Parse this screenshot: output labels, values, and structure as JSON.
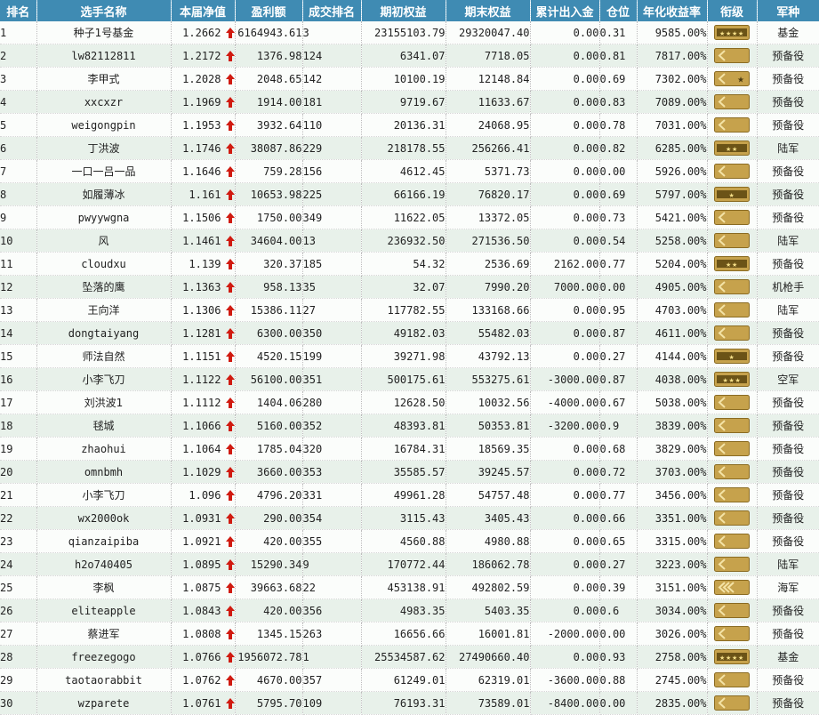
{
  "headers": [
    "排名",
    "选手名称",
    "本届净值",
    "盈利额",
    "成交排名",
    "期初权益",
    "期末权益",
    "累计出入金",
    "仓位",
    "年化收益率",
    "衔级",
    "军种"
  ],
  "colors": {
    "header_bg": "#3f8bb3",
    "row_alt": "#e8f1ea",
    "arrow": "#d01a10",
    "badge_gold": "#c6a24c",
    "badge_dark": "#4a3a12"
  },
  "rows": [
    {
      "rank": "1",
      "name": "种子1号基金",
      "nav": "1.2662",
      "profit": "6164943.61",
      "trades": "3",
      "start": "23155103.79",
      "end": "29320047.40",
      "flow": "0.00",
      "pos": "0.31",
      "annual": "9585.00%",
      "badge": "bar-4star",
      "arm": "基金"
    },
    {
      "rank": "2",
      "name": "lw82112811",
      "nav": "1.2172",
      "profit": "1376.98",
      "trades": "124",
      "start": "6341.07",
      "end": "7718.05",
      "flow": "0.00",
      "pos": "0.81",
      "annual": "7817.00%",
      "badge": "chevron-1",
      "arm": "预备役"
    },
    {
      "rank": "3",
      "name": "李甲式",
      "nav": "1.2028",
      "profit": "2048.65",
      "trades": "142",
      "start": "10100.19",
      "end": "12148.84",
      "flow": "0.00",
      "pos": "0.69",
      "annual": "7302.00%",
      "badge": "chevron-1-star",
      "arm": "预备役"
    },
    {
      "rank": "4",
      "name": "xxcxzr",
      "nav": "1.1969",
      "profit": "1914.00",
      "trades": "181",
      "start": "9719.67",
      "end": "11633.67",
      "flow": "0.00",
      "pos": "0.83",
      "annual": "7089.00%",
      "badge": "chevron-1",
      "arm": "预备役"
    },
    {
      "rank": "5",
      "name": "weigongpin",
      "nav": "1.1953",
      "profit": "3932.64",
      "trades": "110",
      "start": "20136.31",
      "end": "24068.95",
      "flow": "0.00",
      "pos": "0.78",
      "annual": "7031.00%",
      "badge": "chevron-1",
      "arm": "预备役"
    },
    {
      "rank": "6",
      "name": "丁洪波",
      "nav": "1.1746",
      "profit": "38087.86",
      "trades": "229",
      "start": "218178.55",
      "end": "256266.41",
      "flow": "0.00",
      "pos": "0.82",
      "annual": "6285.00%",
      "badge": "bar-2star",
      "arm": "陆军"
    },
    {
      "rank": "7",
      "name": "一口一吕一品",
      "nav": "1.1646",
      "profit": "759.28",
      "trades": "156",
      "start": "4612.45",
      "end": "5371.73",
      "flow": "0.00",
      "pos": "0.00",
      "annual": "5926.00%",
      "badge": "chevron-1",
      "arm": "预备役"
    },
    {
      "rank": "8",
      "name": "如履薄冰",
      "nav": "1.161",
      "profit": "10653.98",
      "trades": "225",
      "start": "66166.19",
      "end": "76820.17",
      "flow": "0.00",
      "pos": "0.69",
      "annual": "5797.00%",
      "badge": "bar-1star",
      "arm": "预备役"
    },
    {
      "rank": "9",
      "name": "pwyywgna",
      "nav": "1.1506",
      "profit": "1750.00",
      "trades": "349",
      "start": "11622.05",
      "end": "13372.05",
      "flow": "0.00",
      "pos": "0.73",
      "annual": "5421.00%",
      "badge": "chevron-1",
      "arm": "预备役"
    },
    {
      "rank": "10",
      "name": "风",
      "nav": "1.1461",
      "profit": "34604.00",
      "trades": "13",
      "start": "236932.50",
      "end": "271536.50",
      "flow": "0.00",
      "pos": "0.54",
      "annual": "5258.00%",
      "badge": "chevron-1",
      "arm": "陆军"
    },
    {
      "rank": "11",
      "name": "cloudxu",
      "nav": "1.139",
      "profit": "320.37",
      "trades": "185",
      "start": "54.32",
      "end": "2536.69",
      "flow": "2162.00",
      "pos": "0.77",
      "annual": "5204.00%",
      "badge": "bar-2star",
      "arm": "预备役"
    },
    {
      "rank": "12",
      "name": "坠落的鹰",
      "nav": "1.1363",
      "profit": "958.13",
      "trades": "35",
      "start": "32.07",
      "end": "7990.20",
      "flow": "7000.00",
      "pos": "0.00",
      "annual": "4905.00%",
      "badge": "chevron-1",
      "arm": "机枪手"
    },
    {
      "rank": "13",
      "name": "王向洋",
      "nav": "1.1306",
      "profit": "15386.11",
      "trades": "27",
      "start": "117782.55",
      "end": "133168.66",
      "flow": "0.00",
      "pos": "0.95",
      "annual": "4703.00%",
      "badge": "chevron-1",
      "arm": "陆军"
    },
    {
      "rank": "14",
      "name": "dongtaiyang",
      "nav": "1.1281",
      "profit": "6300.00",
      "trades": "350",
      "start": "49182.03",
      "end": "55482.03",
      "flow": "0.00",
      "pos": "0.87",
      "annual": "4611.00%",
      "badge": "chevron-1",
      "arm": "预备役"
    },
    {
      "rank": "15",
      "name": "师法自然",
      "nav": "1.1151",
      "profit": "4520.15",
      "trades": "199",
      "start": "39271.98",
      "end": "43792.13",
      "flow": "0.00",
      "pos": "0.27",
      "annual": "4144.00%",
      "badge": "bar-1star",
      "arm": "预备役"
    },
    {
      "rank": "16",
      "name": "小李飞刀",
      "nav": "1.1122",
      "profit": "56100.00",
      "trades": "351",
      "start": "500175.61",
      "end": "553275.61",
      "flow": "-3000.00",
      "pos": "0.87",
      "annual": "4038.00%",
      "badge": "bar-3star",
      "arm": "空军"
    },
    {
      "rank": "17",
      "name": "刘洪波1",
      "nav": "1.1112",
      "profit": "1404.06",
      "trades": "280",
      "start": "12628.50",
      "end": "10032.56",
      "flow": "-4000.00",
      "pos": "0.67",
      "annual": "5038.00%",
      "badge": "chevron-1",
      "arm": "预备役"
    },
    {
      "rank": "18",
      "name": "毬城",
      "nav": "1.1066",
      "profit": "5160.00",
      "trades": "352",
      "start": "48393.81",
      "end": "50353.81",
      "flow": "-3200.00",
      "pos": "0.9",
      "annual": "3839.00%",
      "badge": "chevron-1",
      "arm": "预备役"
    },
    {
      "rank": "19",
      "name": "zhaohui",
      "nav": "1.1064",
      "profit": "1785.04",
      "trades": "320",
      "start": "16784.31",
      "end": "18569.35",
      "flow": "0.00",
      "pos": "0.68",
      "annual": "3829.00%",
      "badge": "chevron-1",
      "arm": "预备役"
    },
    {
      "rank": "20",
      "name": "omnbmh",
      "nav": "1.1029",
      "profit": "3660.00",
      "trades": "353",
      "start": "35585.57",
      "end": "39245.57",
      "flow": "0.00",
      "pos": "0.72",
      "annual": "3703.00%",
      "badge": "chevron-1",
      "arm": "预备役"
    },
    {
      "rank": "21",
      "name": "小李飞刀",
      "nav": "1.096",
      "profit": "4796.20",
      "trades": "331",
      "start": "49961.28",
      "end": "54757.48",
      "flow": "0.00",
      "pos": "0.77",
      "annual": "3456.00%",
      "badge": "chevron-1",
      "arm": "预备役"
    },
    {
      "rank": "22",
      "name": "wx2000ok",
      "nav": "1.0931",
      "profit": "290.00",
      "trades": "354",
      "start": "3115.43",
      "end": "3405.43",
      "flow": "0.00",
      "pos": "0.66",
      "annual": "3351.00%",
      "badge": "chevron-1",
      "arm": "预备役"
    },
    {
      "rank": "23",
      "name": "qianzaipiba",
      "nav": "1.0921",
      "profit": "420.00",
      "trades": "355",
      "start": "4560.88",
      "end": "4980.88",
      "flow": "0.00",
      "pos": "0.65",
      "annual": "3315.00%",
      "badge": "chevron-1",
      "arm": "预备役"
    },
    {
      "rank": "24",
      "name": "h2o740405",
      "nav": "1.0895",
      "profit": "15290.34",
      "trades": "9",
      "start": "170772.44",
      "end": "186062.78",
      "flow": "0.00",
      "pos": "0.27",
      "annual": "3223.00%",
      "badge": "chevron-1",
      "arm": "陆军"
    },
    {
      "rank": "25",
      "name": "李枫",
      "nav": "1.0875",
      "profit": "39663.68",
      "trades": "22",
      "start": "453138.91",
      "end": "492802.59",
      "flow": "0.00",
      "pos": "0.39",
      "annual": "3151.00%",
      "badge": "chevron-3",
      "arm": "海军"
    },
    {
      "rank": "26",
      "name": "eliteapple",
      "nav": "1.0843",
      "profit": "420.00",
      "trades": "356",
      "start": "4983.35",
      "end": "5403.35",
      "flow": "0.00",
      "pos": "0.6",
      "annual": "3034.00%",
      "badge": "chevron-1",
      "arm": "预备役"
    },
    {
      "rank": "27",
      "name": "蔡进军",
      "nav": "1.0808",
      "profit": "1345.15",
      "trades": "263",
      "start": "16656.66",
      "end": "16001.81",
      "flow": "-2000.00",
      "pos": "0.00",
      "annual": "3026.00%",
      "badge": "chevron-1",
      "arm": "预备役"
    },
    {
      "rank": "28",
      "name": "freezegogo",
      "nav": "1.0766",
      "profit": "1956072.78",
      "trades": "1",
      "start": "25534587.62",
      "end": "27490660.40",
      "flow": "0.00",
      "pos": "0.93",
      "annual": "2758.00%",
      "badge": "bar-4star",
      "arm": "基金"
    },
    {
      "rank": "29",
      "name": "taotaorabbit",
      "nav": "1.0762",
      "profit": "4670.00",
      "trades": "357",
      "start": "61249.01",
      "end": "62319.01",
      "flow": "-3600.00",
      "pos": "0.88",
      "annual": "2745.00%",
      "badge": "chevron-1",
      "arm": "预备役"
    },
    {
      "rank": "30",
      "name": "wzparete",
      "nav": "1.0761",
      "profit": "5795.70",
      "trades": "109",
      "start": "76193.31",
      "end": "73589.01",
      "flow": "-8400.00",
      "pos": "0.00",
      "annual": "2835.00%",
      "badge": "chevron-1",
      "arm": "预备役"
    }
  ]
}
